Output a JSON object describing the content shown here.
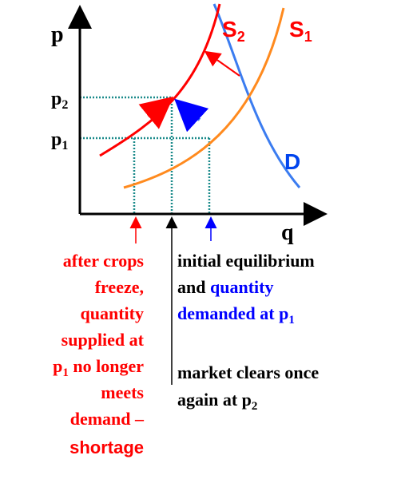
{
  "axes": {
    "y": "p",
    "x": "q"
  },
  "curves": {
    "s2": {
      "base": "S",
      "sub": "2"
    },
    "s1": {
      "base": "S",
      "sub": "1"
    },
    "d": "D"
  },
  "prices": {
    "p2": {
      "base": "p",
      "sub": "2"
    },
    "p1": {
      "base": "p",
      "sub": "1"
    }
  },
  "annotations": {
    "shortage": {
      "lines": [
        "after crops",
        "freeze,",
        "quantity",
        "supplied at",
        [
          "p",
          "1",
          " no longer"
        ],
        "meets",
        "demand –",
        "shortage"
      ]
    },
    "initial": {
      "lines": [
        "initial equilibrium",
        [
          "and ",
          "quantity"
        ],
        [
          "demanded at p",
          "1"
        ]
      ]
    },
    "clears": {
      "lines": [
        "market clears once",
        [
          "again at p",
          "2"
        ]
      ]
    }
  }
}
